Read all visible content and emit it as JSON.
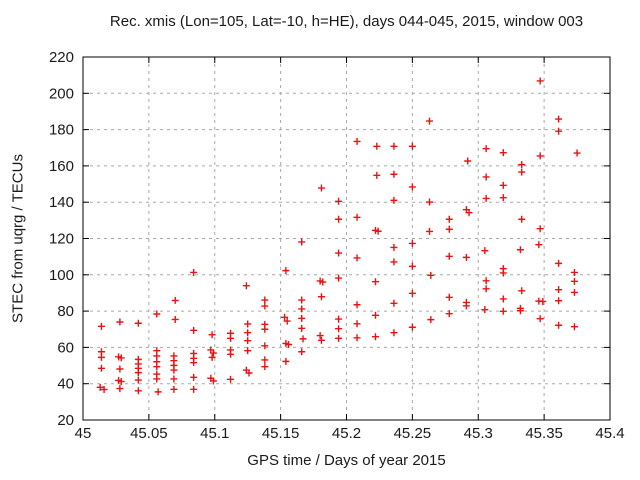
{
  "chart_data": {
    "type": "scatter",
    "title": "Rec. xmis (Lon=105, Lat=-10, h=HE), days 044-045, 2015, window 003",
    "xlabel": "GPS time / Days of year 2015",
    "ylabel": "STEC from uqrg / TECUs",
    "xlim": [
      45,
      45.4
    ],
    "ylim": [
      20,
      220
    ],
    "grid": true,
    "legend": "none",
    "x_ticks": [
      {
        "v": 45,
        "label": "45"
      },
      {
        "v": 45.05,
        "label": "45.05"
      },
      {
        "v": 45.1,
        "label": "45.1"
      },
      {
        "v": 45.15,
        "label": "45.15"
      },
      {
        "v": 45.2,
        "label": "45.2"
      },
      {
        "v": 45.25,
        "label": "45.25"
      },
      {
        "v": 45.3,
        "label": "45.3"
      },
      {
        "v": 45.35,
        "label": "45.35"
      },
      {
        "v": 45.4,
        "label": "45.4"
      }
    ],
    "y_ticks": [
      {
        "v": 20,
        "label": "20"
      },
      {
        "v": 40,
        "label": "40"
      },
      {
        "v": 60,
        "label": "60"
      },
      {
        "v": 80,
        "label": "80"
      },
      {
        "v": 100,
        "label": "100"
      },
      {
        "v": 120,
        "label": "120"
      },
      {
        "v": 140,
        "label": "140"
      },
      {
        "v": 160,
        "label": "160"
      },
      {
        "v": 180,
        "label": "180"
      },
      {
        "v": 200,
        "label": "200"
      },
      {
        "v": 220,
        "label": "220"
      }
    ],
    "series": [
      {
        "name": "STEC",
        "marker": "plus",
        "color": "#ee1111",
        "points": [
          [
            45.014,
            71.6
          ],
          [
            45.014,
            57.6
          ],
          [
            45.014,
            54.5
          ],
          [
            45.014,
            48.5
          ],
          [
            45.013,
            38.0
          ],
          [
            45.016,
            36.8
          ],
          [
            45.028,
            74.0
          ],
          [
            45.027,
            54.8
          ],
          [
            45.029,
            54.2
          ],
          [
            45.028,
            48.1
          ],
          [
            45.027,
            41.8
          ],
          [
            45.029,
            41.2
          ],
          [
            45.028,
            37.3
          ],
          [
            45.042,
            73.3
          ],
          [
            45.042,
            53.4
          ],
          [
            45.042,
            50.9
          ],
          [
            45.042,
            48.5
          ],
          [
            45.042,
            46.1
          ],
          [
            45.042,
            42.0
          ],
          [
            45.042,
            36.1
          ],
          [
            45.056,
            78.4
          ],
          [
            45.056,
            58.2
          ],
          [
            45.056,
            55.3
          ],
          [
            45.056,
            52.1
          ],
          [
            45.056,
            49.4
          ],
          [
            45.056,
            45.3
          ],
          [
            45.056,
            42.6
          ],
          [
            45.057,
            35.5
          ],
          [
            45.07,
            85.9
          ],
          [
            45.07,
            75.4
          ],
          [
            45.069,
            55.3
          ],
          [
            45.069,
            52.7
          ],
          [
            45.069,
            50.1
          ],
          [
            45.069,
            47.5
          ],
          [
            45.069,
            42.6
          ],
          [
            45.069,
            36.9
          ],
          [
            45.084,
            101.3
          ],
          [
            45.084,
            69.4
          ],
          [
            45.084,
            56.7
          ],
          [
            45.084,
            54.0
          ],
          [
            45.084,
            51.6
          ],
          [
            45.084,
            43.5
          ],
          [
            45.084,
            36.9
          ],
          [
            45.098,
            67.0
          ],
          [
            45.097,
            58.6
          ],
          [
            45.099,
            56.9
          ],
          [
            45.098,
            54.5
          ],
          [
            45.097,
            43.0
          ],
          [
            45.099,
            41.5
          ],
          [
            45.112,
            67.8
          ],
          [
            45.112,
            65.0
          ],
          [
            45.112,
            58.6
          ],
          [
            45.112,
            56.2
          ],
          [
            45.112,
            42.4
          ],
          [
            45.124,
            94.0
          ],
          [
            45.125,
            72.9
          ],
          [
            45.125,
            68.1
          ],
          [
            45.125,
            63.7
          ],
          [
            45.125,
            58.2
          ],
          [
            45.124,
            47.5
          ],
          [
            45.126,
            45.9
          ],
          [
            45.138,
            86.1
          ],
          [
            45.138,
            82.8
          ],
          [
            45.138,
            72.7
          ],
          [
            45.138,
            70.0
          ],
          [
            45.138,
            60.9
          ],
          [
            45.138,
            53.1
          ],
          [
            45.138,
            49.4
          ],
          [
            45.154,
            102.3
          ],
          [
            45.153,
            76.6
          ],
          [
            45.155,
            74.5
          ],
          [
            45.154,
            62.2
          ],
          [
            45.156,
            61.6
          ],
          [
            45.154,
            52.3
          ],
          [
            45.166,
            118.1
          ],
          [
            45.166,
            86.1
          ],
          [
            45.166,
            81.2
          ],
          [
            45.166,
            76.0
          ],
          [
            45.166,
            70.5
          ],
          [
            45.167,
            64.7
          ],
          [
            45.166,
            57.6
          ],
          [
            45.181,
            147.8
          ],
          [
            45.18,
            96.6
          ],
          [
            45.182,
            96.0
          ],
          [
            45.181,
            87.9
          ],
          [
            45.18,
            66.5
          ],
          [
            45.181,
            63.9
          ],
          [
            45.194,
            140.5
          ],
          [
            45.194,
            130.6
          ],
          [
            45.194,
            112.0
          ],
          [
            45.194,
            98.2
          ],
          [
            45.194,
            75.6
          ],
          [
            45.194,
            70.3
          ],
          [
            45.194,
            65.0
          ],
          [
            45.208,
            173.5
          ],
          [
            45.208,
            131.7
          ],
          [
            45.208,
            109.3
          ],
          [
            45.208,
            83.5
          ],
          [
            45.208,
            73.0
          ],
          [
            45.208,
            65.3
          ],
          [
            45.223,
            170.8
          ],
          [
            45.223,
            154.8
          ],
          [
            45.222,
            124.5
          ],
          [
            45.224,
            124.0
          ],
          [
            45.222,
            96.2
          ],
          [
            45.222,
            77.7
          ],
          [
            45.222,
            65.9
          ],
          [
            45.236,
            170.8
          ],
          [
            45.236,
            155.4
          ],
          [
            45.236,
            141.0
          ],
          [
            45.236,
            115.1
          ],
          [
            45.236,
            107.1
          ],
          [
            45.236,
            84.3
          ],
          [
            45.236,
            68.1
          ],
          [
            45.25,
            170.8
          ],
          [
            45.25,
            148.4
          ],
          [
            45.25,
            117.3
          ],
          [
            45.25,
            104.7
          ],
          [
            45.25,
            89.8
          ],
          [
            45.25,
            71.1
          ],
          [
            45.263,
            184.7
          ],
          [
            45.263,
            140.1
          ],
          [
            45.263,
            123.9
          ],
          [
            45.264,
            99.7
          ],
          [
            45.264,
            75.3
          ],
          [
            45.278,
            130.6
          ],
          [
            45.278,
            125.1
          ],
          [
            45.278,
            110.2
          ],
          [
            45.278,
            87.6
          ],
          [
            45.278,
            78.6
          ],
          [
            45.292,
            162.7
          ],
          [
            45.291,
            135.9
          ],
          [
            45.293,
            134.2
          ],
          [
            45.291,
            109.6
          ],
          [
            45.291,
            84.8
          ],
          [
            45.291,
            82.9
          ],
          [
            45.306,
            169.5
          ],
          [
            45.306,
            153.9
          ],
          [
            45.306,
            142.1
          ],
          [
            45.305,
            113.3
          ],
          [
            45.306,
            96.7
          ],
          [
            45.306,
            92.3
          ],
          [
            45.305,
            80.8
          ],
          [
            45.319,
            167.3
          ],
          [
            45.319,
            149.3
          ],
          [
            45.319,
            142.5
          ],
          [
            45.319,
            103.4
          ],
          [
            45.319,
            101.0
          ],
          [
            45.319,
            86.7
          ],
          [
            45.319,
            79.9
          ],
          [
            45.333,
            160.7
          ],
          [
            45.333,
            156.6
          ],
          [
            45.333,
            130.6
          ],
          [
            45.332,
            113.8
          ],
          [
            45.333,
            91.2
          ],
          [
            45.332,
            81.5
          ],
          [
            45.332,
            80.2
          ],
          [
            45.347,
            206.8
          ],
          [
            45.347,
            165.5
          ],
          [
            45.347,
            125.4
          ],
          [
            45.346,
            116.6
          ],
          [
            45.346,
            85.5
          ],
          [
            45.349,
            85.3
          ],
          [
            45.347,
            75.8
          ],
          [
            45.361,
            185.8
          ],
          [
            45.361,
            179.1
          ],
          [
            45.361,
            106.3
          ],
          [
            45.361,
            91.8
          ],
          [
            45.361,
            85.7
          ],
          [
            45.361,
            72.2
          ],
          [
            45.375,
            167.1
          ],
          [
            45.373,
            101.3
          ],
          [
            45.373,
            96.4
          ],
          [
            45.373,
            90.3
          ],
          [
            45.373,
            71.4
          ]
        ]
      }
    ],
    "colors": {
      "marker": "#ee1111",
      "grid": "#a8a8a8",
      "axis": "#000000",
      "background": "#ffffff"
    }
  }
}
